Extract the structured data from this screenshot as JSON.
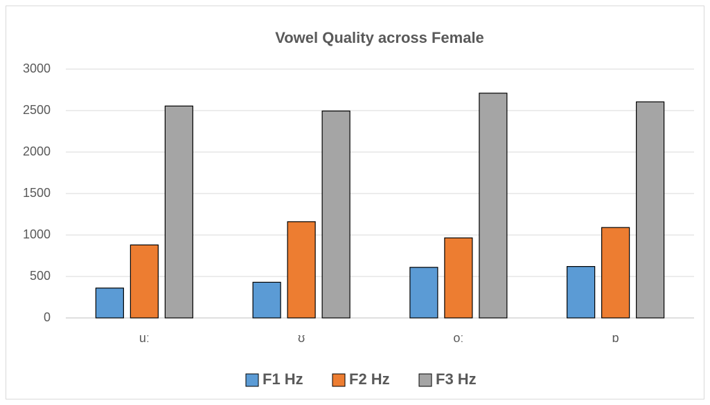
{
  "chart_data": {
    "type": "bar",
    "title": "Vowel Quality across Female",
    "categories": [
      "uː",
      "ʊ",
      "oː",
      "ɒ"
    ],
    "series": [
      {
        "name": "F1 Hz",
        "color": "#5b9bd5",
        "values": [
          360,
          430,
          610,
          620
        ]
      },
      {
        "name": "F2 Hz",
        "color": "#ed7d31",
        "values": [
          880,
          1160,
          965,
          1090
        ]
      },
      {
        "name": "F3 Hz",
        "color": "#a5a5a5",
        "values": [
          2555,
          2495,
          2710,
          2605
        ]
      }
    ],
    "ylim": [
      0,
      3000
    ],
    "yticks": [
      0,
      500,
      1000,
      1500,
      2000,
      2500,
      3000
    ],
    "grid": true,
    "legend": "bottom"
  }
}
